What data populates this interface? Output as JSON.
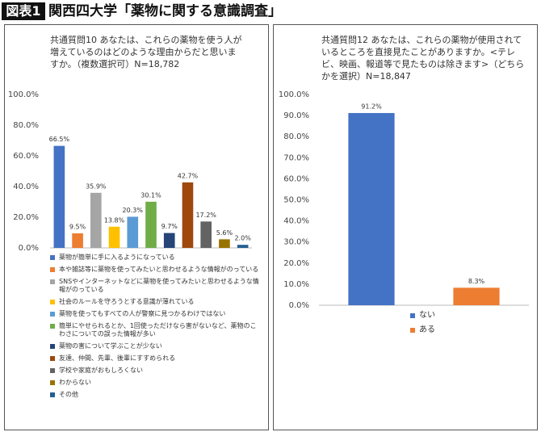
{
  "header": {
    "label": "図表1",
    "title": "関西四大学「薬物に関する意識調査」"
  },
  "chart_data": [
    {
      "type": "bar",
      "title": "共通質問10 あなたは、これらの薬物を使う人が増えているのはどのような理由からだと思いますか。（複数選択可）N=18,782",
      "categories": [
        "薬物が簡単に手に入るようになっている",
        "本や雑誌等に薬物を使ってみたいと思わせるような情報がのっている",
        "SNSやインターネットなどに薬物を使ってみたいと思わせるような情報がのっている",
        "社会のルールを守ろうとする意識が薄れている",
        "薬物を使ってもすべての人が警察に見つかるわけではない",
        "簡単にやせられるとか、1回使っただけなら害がないなど、薬物のこわさについての誤った情報が多い",
        "薬物の害について学ぶことが少ない",
        "友達、仲間、先輩、後輩にすすめられる",
        "学校や家庭がおもしろくない",
        "わからない",
        "その他"
      ],
      "values": [
        66.5,
        9.5,
        35.9,
        13.8,
        20.3,
        30.1,
        9.7,
        42.7,
        17.2,
        5.6,
        2.0
      ],
      "value_labels": [
        "66.5%",
        "9.5%",
        "35.9%",
        "13.8%",
        "20.3%",
        "30.1%",
        "9.7%",
        "42.7%",
        "17.2%",
        "5.6%",
        "2.0%"
      ],
      "colors": [
        "#4472c4",
        "#ed7d31",
        "#a5a5a5",
        "#ffc000",
        "#5b9bd5",
        "#70ad47",
        "#264478",
        "#9e480e",
        "#636363",
        "#997300",
        "#255e91"
      ],
      "ylim": [
        0,
        100
      ],
      "yticks": [
        {
          "value": 0,
          "label": "0.0%"
        },
        {
          "value": 20,
          "label": "20.0%"
        },
        {
          "value": 40,
          "label": "40.0%"
        },
        {
          "value": 60,
          "label": "60.0%"
        },
        {
          "value": 80,
          "label": "80.0%"
        },
        {
          "value": 100,
          "label": "100.0%"
        }
      ],
      "grid": false
    },
    {
      "type": "bar",
      "title": "共通質問12 あなたは、これらの薬物が使用されているところを直接見たことがありますか。<テレビ、映画、報道等で見たものは除きます>（どちらかを選択）N=18,847",
      "categories": [
        "ない",
        "ある"
      ],
      "values": [
        91.2,
        8.3
      ],
      "value_labels": [
        "91.2%",
        "8.3%"
      ],
      "colors": [
        "#4472c4",
        "#ed7d31"
      ],
      "ylim": [
        0,
        100
      ],
      "yticks": [
        {
          "value": 0,
          "label": "0.0%"
        },
        {
          "value": 10,
          "label": "10.0%"
        },
        {
          "value": 20,
          "label": "20.0%"
        },
        {
          "value": 30,
          "label": "30.0%"
        },
        {
          "value": 40,
          "label": "40.0%"
        },
        {
          "value": 50,
          "label": "50.0%"
        },
        {
          "value": 60,
          "label": "60.0%"
        },
        {
          "value": 70,
          "label": "70.0%"
        },
        {
          "value": 80,
          "label": "80.0%"
        },
        {
          "value": 90,
          "label": "90.0%"
        },
        {
          "value": 100,
          "label": "100.0%"
        }
      ],
      "grid": false
    }
  ]
}
